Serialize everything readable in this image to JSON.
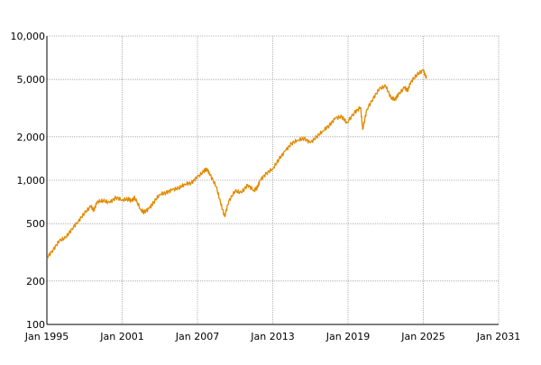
{
  "chart_data": {
    "type": "line",
    "title": "",
    "xlabel": "",
    "ylabel": "",
    "y_scale": "log",
    "ylim": [
      100,
      10000
    ],
    "xlim": [
      "1995-01",
      "2031-01"
    ],
    "grid": true,
    "grid_style": "dotted",
    "y_ticks": [
      {
        "value": 100,
        "label": "100"
      },
      {
        "value": 200,
        "label": "200"
      },
      {
        "value": 500,
        "label": "500"
      },
      {
        "value": 1000,
        "label": "1,000"
      },
      {
        "value": 2000,
        "label": "2,000"
      },
      {
        "value": 5000,
        "label": "5,000"
      },
      {
        "value": 10000,
        "label": "10,000"
      }
    ],
    "x_ticks": [
      {
        "value": "1995-01",
        "label": "Jan 1995"
      },
      {
        "value": "2001-01",
        "label": "Jan 2001"
      },
      {
        "value": "2007-01",
        "label": "Jan 2007"
      },
      {
        "value": "2013-01",
        "label": "Jan 2013"
      },
      {
        "value": "2019-01",
        "label": "Jan 2019"
      },
      {
        "value": "2025-01",
        "label": "Jan 2025"
      },
      {
        "value": "2031-01",
        "label": "Jan 2031"
      }
    ],
    "series": [
      {
        "color": "#e08a00",
        "points": [
          [
            "1995-01",
            290
          ],
          [
            "1995-07",
            330
          ],
          [
            "1996-01",
            380
          ],
          [
            "1996-07",
            400
          ],
          [
            "1997-01",
            460
          ],
          [
            "1997-07",
            520
          ],
          [
            "1998-01",
            590
          ],
          [
            "1998-07",
            660
          ],
          [
            "1998-10",
            620
          ],
          [
            "1999-01",
            710
          ],
          [
            "1999-07",
            720
          ],
          [
            "2000-01",
            700
          ],
          [
            "2000-07",
            760
          ],
          [
            "2001-01",
            730
          ],
          [
            "2001-07",
            740
          ],
          [
            "2001-10",
            720
          ],
          [
            "2002-01",
            760
          ],
          [
            "2002-07",
            620
          ],
          [
            "2002-10",
            600
          ],
          [
            "2003-03",
            640
          ],
          [
            "2003-07",
            700
          ],
          [
            "2004-01",
            800
          ],
          [
            "2004-07",
            820
          ],
          [
            "2005-01",
            860
          ],
          [
            "2005-07",
            880
          ],
          [
            "2006-01",
            940
          ],
          [
            "2006-07",
            960
          ],
          [
            "2007-01",
            1050
          ],
          [
            "2007-07",
            1150
          ],
          [
            "2007-10",
            1200
          ],
          [
            "2008-01",
            1100
          ],
          [
            "2008-07",
            900
          ],
          [
            "2008-11",
            700
          ],
          [
            "2009-03",
            560
          ],
          [
            "2009-07",
            720
          ],
          [
            "2010-01",
            840
          ],
          [
            "2010-07",
            820
          ],
          [
            "2011-01",
            930
          ],
          [
            "2011-07",
            850
          ],
          [
            "2011-10",
            880
          ],
          [
            "2012-01",
            1000
          ],
          [
            "2012-07",
            1120
          ],
          [
            "2013-01",
            1200
          ],
          [
            "2013-07",
            1400
          ],
          [
            "2014-01",
            1600
          ],
          [
            "2014-07",
            1800
          ],
          [
            "2015-01",
            1900
          ],
          [
            "2015-07",
            1950
          ],
          [
            "2016-01",
            1820
          ],
          [
            "2016-07",
            2000
          ],
          [
            "2017-01",
            2200
          ],
          [
            "2017-07",
            2400
          ],
          [
            "2018-01",
            2700
          ],
          [
            "2018-07",
            2750
          ],
          [
            "2018-12",
            2500
          ],
          [
            "2019-07",
            2950
          ],
          [
            "2020-01",
            3200
          ],
          [
            "2020-03",
            2250
          ],
          [
            "2020-07",
            3100
          ],
          [
            "2021-01",
            3700
          ],
          [
            "2021-07",
            4300
          ],
          [
            "2022-01",
            4500
          ],
          [
            "2022-06",
            3750
          ],
          [
            "2022-10",
            3650
          ],
          [
            "2023-01",
            3900
          ],
          [
            "2023-07",
            4400
          ],
          [
            "2023-10",
            4200
          ],
          [
            "2024-01",
            4800
          ],
          [
            "2024-07",
            5400
          ],
          [
            "2025-01",
            5800
          ],
          [
            "2025-04",
            5100
          ]
        ]
      }
    ]
  }
}
